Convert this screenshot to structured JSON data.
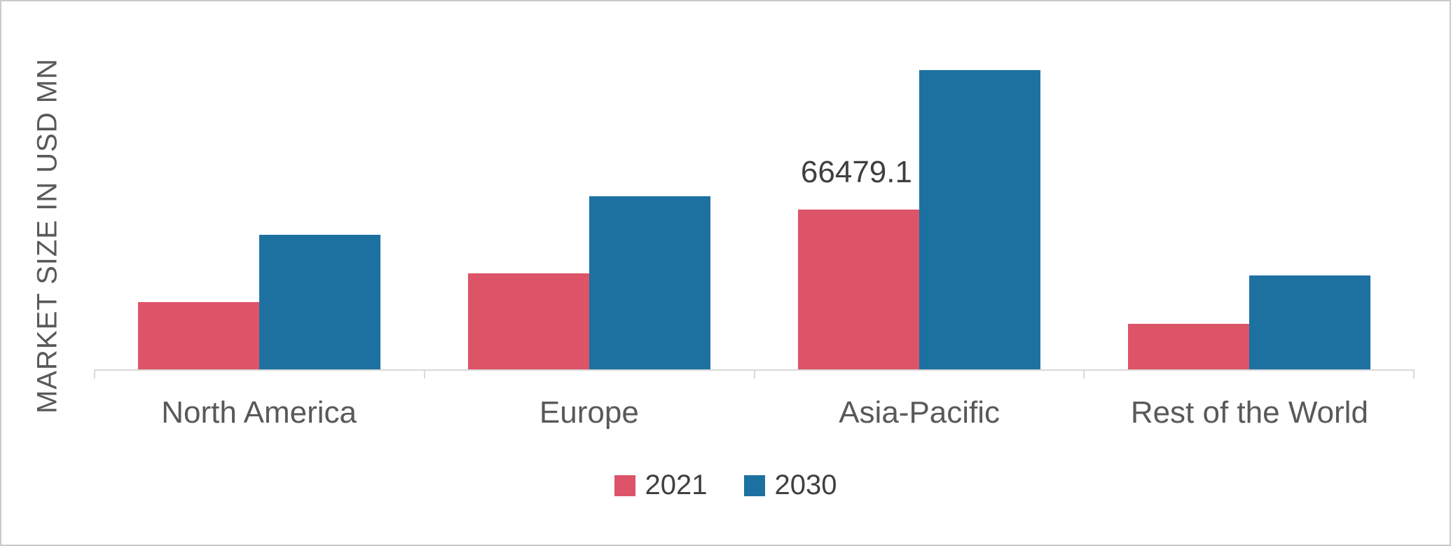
{
  "chart_data": {
    "type": "bar",
    "categories": [
      "North America",
      "Europe",
      "Asia-Pacific",
      "Rest of the World"
    ],
    "series": [
      {
        "name": "2021",
        "color": "#dd5468",
        "values": [
          28000,
          40000,
          66479.1,
          19000
        ]
      },
      {
        "name": "2030",
        "color": "#1d71a1",
        "values": [
          56000,
          72000,
          124500,
          39000
        ]
      }
    ],
    "title": "",
    "xlabel": "",
    "ylabel": "MARKET SIZE IN USD MN",
    "ylim": [
      0,
      130000
    ],
    "grid": false,
    "legend_position": "bottom",
    "annotations": [
      {
        "series": "2021",
        "category": "Asia-Pacific",
        "text": "66479.1"
      }
    ]
  },
  "colors": {
    "axis_line": "#d9d9d9",
    "axis_text": "#595959",
    "frame_border": "#cbcbcb",
    "data_label_text": "#3f3f3f",
    "background": "#ffffff"
  }
}
